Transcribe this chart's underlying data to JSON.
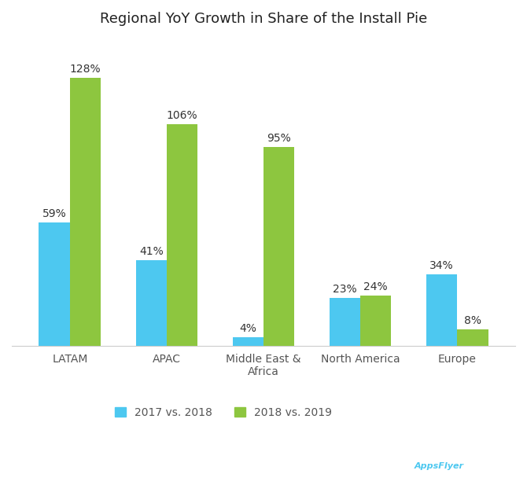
{
  "title": "Regional YoY Growth in Share of the Install Pie",
  "categories": [
    "LATAM",
    "APAC",
    "Middle East &\nAfrica",
    "North America",
    "Europe"
  ],
  "values_2017_2018": [
    59,
    41,
    4,
    23,
    34
  ],
  "values_2018_2019": [
    128,
    106,
    95,
    24,
    8
  ],
  "labels_2017_2018": [
    "59%",
    "41%",
    "4%",
    "23%",
    "34%"
  ],
  "labels_2018_2019": [
    "128%",
    "106%",
    "95%",
    "24%",
    "8%"
  ],
  "color_blue": "#4DC8F0",
  "color_green": "#8DC63F",
  "legend_blue": "2017 vs. 2018",
  "legend_green": "2018 vs. 2019",
  "background_color": "#ffffff",
  "bar_width": 0.32,
  "ylim": [
    0,
    145
  ],
  "title_fontsize": 13,
  "label_fontsize": 10,
  "tick_fontsize": 10,
  "legend_fontsize": 10
}
